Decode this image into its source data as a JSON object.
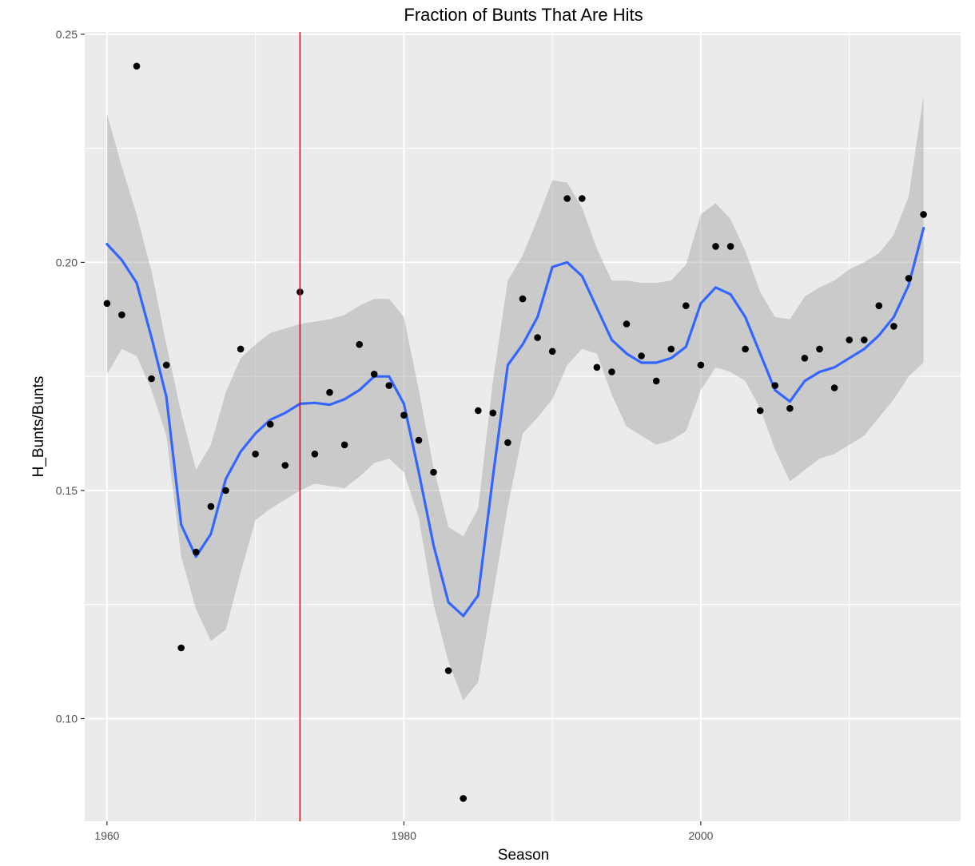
{
  "chart_data": {
    "type": "scatter",
    "title": "Fraction of Bunts That Are Hits",
    "xlabel": "Season",
    "ylabel": "H_Bunts/Bunts",
    "xlim": [
      1958.5,
      2017.5
    ],
    "ylim": [
      0.0775,
      0.2505
    ],
    "x_ticks": [
      1960,
      1980,
      2000
    ],
    "x_tick_labels": [
      "1960",
      "1980",
      "2000"
    ],
    "y_ticks": [
      0.1,
      0.15,
      0.2,
      0.25
    ],
    "y_tick_labels": [
      "0.10",
      "0.15",
      "0.20",
      "0.25"
    ],
    "grid": true,
    "panel_background": "#ebebeb",
    "vertical_line": {
      "x": 1973,
      "color": "#ff0000"
    },
    "points": {
      "x": [
        1960,
        1961,
        1962,
        1963,
        1964,
        1965,
        1966,
        1967,
        1968,
        1969,
        1970,
        1971,
        1972,
        1973,
        1974,
        1975,
        1976,
        1977,
        1978,
        1979,
        1980,
        1981,
        1982,
        1983,
        1984,
        1985,
        1986,
        1987,
        1988,
        1989,
        1990,
        1991,
        1992,
        1993,
        1994,
        1995,
        1996,
        1997,
        1998,
        1999,
        2000,
        2001,
        2002,
        2003,
        2004,
        2005,
        2006,
        2007,
        2008,
        2009,
        2010,
        2011,
        2012,
        2013,
        2014,
        2015
      ],
      "y": [
        0.191,
        0.1885,
        0.243,
        0.1745,
        0.1775,
        0.1155,
        0.1365,
        0.1465,
        0.15,
        0.181,
        0.158,
        0.1645,
        0.1555,
        0.1935,
        0.158,
        0.1715,
        0.16,
        0.182,
        0.1755,
        0.173,
        0.1665,
        0.161,
        0.154,
        0.1105,
        0.0825,
        0.1675,
        0.167,
        0.1605,
        0.192,
        0.1835,
        0.1805,
        0.214,
        0.214,
        0.177,
        0.176,
        0.1865,
        0.1795,
        0.174,
        0.181,
        0.1905,
        0.1775,
        0.2035,
        0.2035,
        0.181,
        0.1675,
        0.173,
        0.168,
        0.179,
        0.181,
        0.1725,
        0.183,
        0.183,
        0.1905,
        0.186,
        0.1965,
        0.2105
      ],
      "color": "#000000"
    },
    "smooth": {
      "color": "#3366ff",
      "band_color": "#999999",
      "x": [
        1960,
        1961,
        1962,
        1963,
        1964,
        1965,
        1966,
        1967,
        1968,
        1969,
        1970,
        1971,
        1972,
        1973,
        1974,
        1975,
        1976,
        1977,
        1978,
        1979,
        1980,
        1981,
        1982,
        1983,
        1984,
        1985,
        1986,
        1987,
        1988,
        1989,
        1990,
        1991,
        1992,
        1993,
        1994,
        1995,
        1996,
        1997,
        1998,
        1999,
        2000,
        2001,
        2002,
        2003,
        2004,
        2005,
        2006,
        2007,
        2008,
        2009,
        2010,
        2011,
        2012,
        2013,
        2014,
        2015
      ],
      "y": [
        0.204,
        0.2005,
        0.1955,
        0.1835,
        0.1705,
        0.1425,
        0.1355,
        0.1405,
        0.1525,
        0.1585,
        0.1625,
        0.1655,
        0.167,
        0.169,
        0.1692,
        0.1688,
        0.17,
        0.172,
        0.175,
        0.175,
        0.169,
        0.154,
        0.138,
        0.1255,
        0.1225,
        0.127,
        0.153,
        0.1775,
        0.182,
        0.188,
        0.199,
        0.2,
        0.197,
        0.19,
        0.183,
        0.18,
        0.178,
        0.178,
        0.179,
        0.1815,
        0.191,
        0.1945,
        0.193,
        0.188,
        0.18,
        0.172,
        0.1695,
        0.174,
        0.176,
        0.177,
        0.179,
        0.181,
        0.184,
        0.188,
        0.195,
        0.2075
      ],
      "lower": [
        0.1755,
        0.181,
        0.1795,
        0.172,
        0.162,
        0.1355,
        0.124,
        0.117,
        0.1195,
        0.132,
        0.1435,
        0.146,
        0.148,
        0.15,
        0.1515,
        0.151,
        0.1505,
        0.153,
        0.156,
        0.157,
        0.154,
        0.144,
        0.125,
        0.1125,
        0.104,
        0.108,
        0.127,
        0.1465,
        0.1625,
        0.166,
        0.17,
        0.1775,
        0.181,
        0.18,
        0.171,
        0.164,
        0.162,
        0.16,
        0.161,
        0.163,
        0.172,
        0.177,
        0.176,
        0.174,
        0.168,
        0.159,
        0.152,
        0.1545,
        0.157,
        0.158,
        0.16,
        0.162,
        0.166,
        0.17,
        0.175,
        0.178
      ],
      "upper": [
        0.2325,
        0.221,
        0.2105,
        0.198,
        0.182,
        0.167,
        0.1545,
        0.16,
        0.1715,
        0.179,
        0.182,
        0.1845,
        0.1855,
        0.1865,
        0.187,
        0.1875,
        0.1885,
        0.1905,
        0.192,
        0.192,
        0.188,
        0.172,
        0.155,
        0.142,
        0.14,
        0.146,
        0.174,
        0.196,
        0.2015,
        0.2095,
        0.218,
        0.2175,
        0.212,
        0.203,
        0.196,
        0.196,
        0.1955,
        0.1955,
        0.196,
        0.1995,
        0.2105,
        0.213,
        0.2095,
        0.2025,
        0.1935,
        0.188,
        0.1875,
        0.1925,
        0.1945,
        0.196,
        0.1985,
        0.2,
        0.202,
        0.206,
        0.2145,
        0.2365
      ]
    }
  }
}
